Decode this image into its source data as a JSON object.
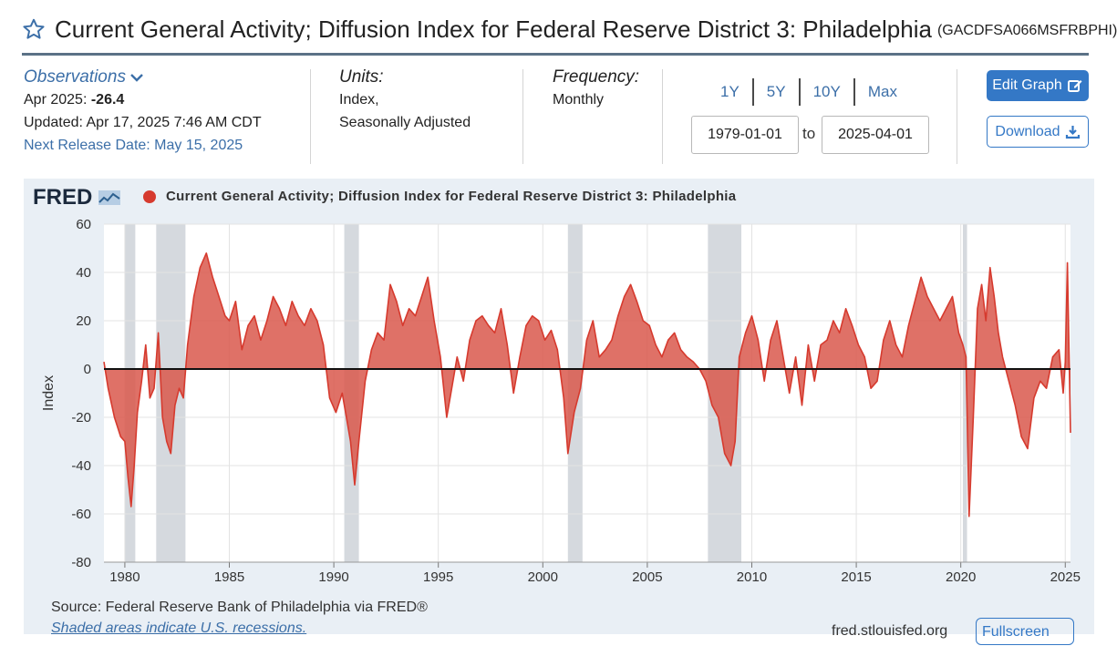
{
  "header": {
    "title": "Current General Activity; Diffusion Index for Federal Reserve District 3: Philadelphia",
    "series_id": "(GACDFSA066MSFRBPHI)"
  },
  "observations": {
    "label": "Observations",
    "latest_prefix": "Apr 2025:",
    "latest_value": "-26.4",
    "updated": "Updated: Apr 17, 2025 7:46 AM CDT",
    "next_release": "Next Release Date: May 15, 2025"
  },
  "units": {
    "label": "Units:",
    "line1": "Index,",
    "line2": "Seasonally Adjusted"
  },
  "frequency": {
    "label": "Frequency:",
    "value": "Monthly"
  },
  "range_buttons": [
    "1Y",
    "5Y",
    "10Y",
    "Max"
  ],
  "date_range": {
    "start": "1979-01-01",
    "to_label": "to",
    "end": "2025-04-01"
  },
  "buttons": {
    "edit_graph": "Edit Graph",
    "download": "Download",
    "fullscreen": "Fullscreen"
  },
  "chart_header": {
    "logo": "FRED",
    "legend": "Current General Activity; Diffusion Index for Federal Reserve District 3: Philadelphia"
  },
  "footer": {
    "source": "Source: Federal Reserve Bank of Philadelphia via FRED®",
    "recession_note": "Shaded areas indicate U.S. recessions.",
    "url": "fred.stlouisfed.org"
  },
  "colors": {
    "series": "#d63a2e",
    "fill": "#d9584c",
    "recession": "#d5d9de",
    "accent": "#3478c6",
    "link": "#3c6fa8"
  },
  "chart_data": {
    "type": "area",
    "title": "",
    "xlabel": "",
    "ylabel": "Index",
    "xlim": [
      1979.0,
      2025.25
    ],
    "ylim": [
      -80,
      60
    ],
    "yticks": [
      60,
      40,
      20,
      0,
      -20,
      -40,
      -60,
      -80
    ],
    "xticks": [
      1980,
      1985,
      1990,
      1995,
      2000,
      2005,
      2010,
      2015,
      2020,
      2025
    ],
    "grid": true,
    "legend": "top-left",
    "recessions": [
      [
        1980.0,
        1980.5
      ],
      [
        1981.5,
        1982.9
      ],
      [
        1990.5,
        1991.2
      ],
      [
        2001.2,
        2001.9
      ],
      [
        2007.9,
        2009.5
      ],
      [
        2020.1,
        2020.3
      ]
    ],
    "series": [
      {
        "name": "Current General Activity; Diffusion Index for Federal Reserve District 3: Philadelphia",
        "x": [
          1979.0,
          1979.2,
          1979.5,
          1979.8,
          1980.0,
          1980.15,
          1980.3,
          1980.45,
          1980.6,
          1980.8,
          1981.0,
          1981.2,
          1981.4,
          1981.6,
          1981.8,
          1982.0,
          1982.2,
          1982.4,
          1982.6,
          1982.8,
          1983.0,
          1983.3,
          1983.6,
          1983.9,
          1984.2,
          1984.5,
          1984.8,
          1985.0,
          1985.3,
          1985.6,
          1985.9,
          1986.2,
          1986.5,
          1986.8,
          1987.1,
          1987.4,
          1987.7,
          1988.0,
          1988.3,
          1988.6,
          1988.9,
          1989.2,
          1989.5,
          1989.8,
          1990.1,
          1990.4,
          1990.6,
          1990.8,
          1991.0,
          1991.2,
          1991.5,
          1991.8,
          1992.1,
          1992.4,
          1992.7,
          1993.0,
          1993.3,
          1993.6,
          1993.9,
          1994.2,
          1994.5,
          1994.8,
          1995.1,
          1995.4,
          1995.6,
          1995.9,
          1996.2,
          1996.5,
          1996.8,
          1997.1,
          1997.4,
          1997.7,
          1998.0,
          1998.3,
          1998.6,
          1998.9,
          1999.2,
          1999.5,
          1999.8,
          2000.1,
          2000.4,
          2000.7,
          2001.0,
          2001.2,
          2001.5,
          2001.8,
          2002.1,
          2002.4,
          2002.7,
          2003.0,
          2003.3,
          2003.6,
          2003.9,
          2004.2,
          2004.5,
          2004.8,
          2005.1,
          2005.4,
          2005.7,
          2006.0,
          2006.3,
          2006.6,
          2006.9,
          2007.2,
          2007.5,
          2007.8,
          2008.1,
          2008.4,
          2008.7,
          2009.0,
          2009.2,
          2009.4,
          2009.7,
          2010.0,
          2010.3,
          2010.6,
          2010.9,
          2011.2,
          2011.5,
          2011.8,
          2012.1,
          2012.4,
          2012.7,
          2013.0,
          2013.3,
          2013.6,
          2013.9,
          2014.2,
          2014.5,
          2014.8,
          2015.1,
          2015.4,
          2015.7,
          2016.0,
          2016.3,
          2016.6,
          2016.9,
          2017.2,
          2017.5,
          2017.8,
          2018.1,
          2018.4,
          2018.7,
          2019.0,
          2019.3,
          2019.6,
          2019.9,
          2020.1,
          2020.25,
          2020.4,
          2020.6,
          2020.8,
          2021.0,
          2021.2,
          2021.4,
          2021.6,
          2021.8,
          2022.0,
          2022.3,
          2022.6,
          2022.9,
          2023.2,
          2023.5,
          2023.8,
          2024.1,
          2024.4,
          2024.7,
          2024.9,
          2025.0,
          2025.1,
          2025.25
        ],
        "values": [
          3,
          -8,
          -20,
          -28,
          -30,
          -45,
          -57,
          -40,
          -18,
          -5,
          10,
          -12,
          -8,
          15,
          -20,
          -30,
          -35,
          -15,
          -8,
          -12,
          10,
          30,
          42,
          48,
          38,
          30,
          22,
          20,
          28,
          8,
          18,
          22,
          12,
          20,
          30,
          25,
          18,
          28,
          22,
          18,
          25,
          20,
          10,
          -12,
          -18,
          -10,
          -20,
          -30,
          -48,
          -30,
          -5,
          8,
          15,
          12,
          35,
          28,
          18,
          25,
          22,
          30,
          38,
          20,
          5,
          -20,
          -10,
          5,
          -5,
          12,
          20,
          22,
          18,
          15,
          25,
          10,
          -10,
          5,
          18,
          22,
          20,
          12,
          16,
          8,
          -12,
          -35,
          -18,
          -8,
          12,
          20,
          5,
          8,
          12,
          22,
          30,
          35,
          28,
          20,
          18,
          10,
          5,
          12,
          15,
          8,
          5,
          3,
          0,
          -5,
          -15,
          -20,
          -35,
          -40,
          -30,
          5,
          15,
          22,
          12,
          -5,
          12,
          20,
          5,
          -10,
          5,
          -15,
          10,
          -5,
          10,
          12,
          20,
          15,
          25,
          18,
          10,
          5,
          -8,
          -5,
          12,
          20,
          10,
          5,
          18,
          28,
          38,
          30,
          25,
          20,
          25,
          30,
          15,
          10,
          5,
          -61,
          -20,
          25,
          35,
          20,
          42,
          30,
          15,
          5,
          -5,
          -15,
          -28,
          -33,
          -12,
          -5,
          -8,
          5,
          8,
          -10,
          3,
          44,
          -26.4
        ]
      }
    ]
  }
}
